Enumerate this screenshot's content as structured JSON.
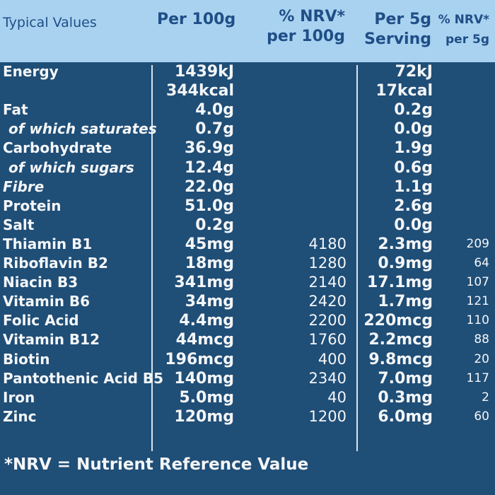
{
  "header": {
    "typical_values": "Typical Values",
    "per_100g": "Per 100g",
    "nrv_per_100g_line1": "% NRV*",
    "nrv_per_100g_line2": "per 100g",
    "per_5g_line1": "Per 5g",
    "per_5g_line2": "Serving",
    "nrv_per_5g_line1": "% NRV*",
    "nrv_per_5g_line2": "per 5g"
  },
  "rows": [
    {
      "name": "Energy",
      "per100": "1439kJ",
      "nrv100": "",
      "per5": "72kJ",
      "nrv5": ""
    },
    {
      "name": "",
      "per100": "344kcal",
      "nrv100": "",
      "per5": "17kcal",
      "nrv5": ""
    },
    {
      "name": "Fat",
      "per100": "4.0g",
      "nrv100": "",
      "per5": "0.2g",
      "nrv5": ""
    },
    {
      "name": "of which saturates",
      "per100": "0.7g",
      "nrv100": "",
      "per5": "0.0g",
      "nrv5": ""
    },
    {
      "name": "Carbohydrate",
      "per100": "36.9g",
      "nrv100": "",
      "per5": "1.9g",
      "nrv5": ""
    },
    {
      "name": "of which sugars",
      "per100": "12.4g",
      "nrv100": "",
      "per5": "0.6g",
      "nrv5": ""
    },
    {
      "name": "Fibre",
      "per100": "22.0g",
      "nrv100": "",
      "per5": "1.1g",
      "nrv5": ""
    },
    {
      "name": "Protein",
      "per100": "51.0g",
      "nrv100": "",
      "per5": "2.6g",
      "nrv5": ""
    },
    {
      "name": "Salt",
      "per100": "0.2g",
      "nrv100": "",
      "per5": "0.0g",
      "nrv5": ""
    },
    {
      "name": "Thiamin B1",
      "per100": "45mg",
      "nrv100": "4180",
      "per5": "2.3mg",
      "nrv5": "209"
    },
    {
      "name": "Riboflavin B2",
      "per100": "18mg",
      "nrv100": "1280",
      "per5": "0.9mg",
      "nrv5": "64"
    },
    {
      "name": "Niacin B3",
      "per100": "341mg",
      "nrv100": "2140",
      "per5": "17.1mg",
      "nrv5": "107"
    },
    {
      "name": "Vitamin B6",
      "per100": "34mg",
      "nrv100": "2420",
      "per5": "1.7mg",
      "nrv5": "121"
    },
    {
      "name": "Folic Acid",
      "per100": "4.4mg",
      "nrv100": "2200",
      "per5": "220mcg",
      "nrv5": "110"
    },
    {
      "name": "Vitamin B12",
      "per100": "44mcg",
      "nrv100": "1760",
      "per5": "2.2mcg",
      "nrv5": "88"
    },
    {
      "name": "Biotin",
      "per100": "196mcg",
      "nrv100": "400",
      "per5": "9.8mcg",
      "nrv5": "20"
    },
    {
      "name": "Pantothenic Acid B5",
      "per100": "140mg",
      "nrv100": "2340",
      "per5": "7.0mg",
      "nrv5": "117"
    },
    {
      "name": "Iron",
      "per100": "5.0mg",
      "nrv100": "40",
      "per5": "0.3mg",
      "nrv5": "2"
    },
    {
      "name": "Zinc",
      "per100": "120mg",
      "nrv100": "1200",
      "per5": "6.0mg",
      "nrv5": "60"
    }
  ],
  "footnote": "*NRV = Nutrient Reference Value",
  "colors": {
    "background": "#1f4e77",
    "header": "#a9d2f0",
    "header_text": "#1f4e87",
    "text": "#f4f6f8"
  }
}
